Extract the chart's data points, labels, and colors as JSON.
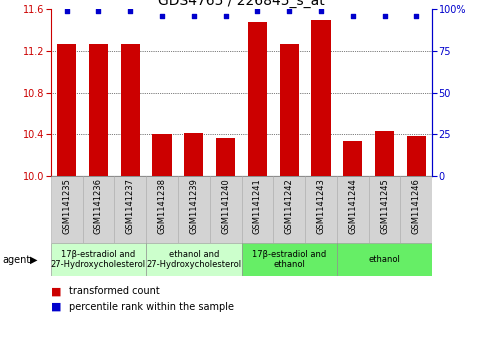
{
  "title": "GDS4765 / 226845_s_at",
  "samples": [
    "GSM1141235",
    "GSM1141236",
    "GSM1141237",
    "GSM1141238",
    "GSM1141239",
    "GSM1141240",
    "GSM1141241",
    "GSM1141242",
    "GSM1141243",
    "GSM1141244",
    "GSM1141245",
    "GSM1141246"
  ],
  "bar_values": [
    11.27,
    11.27,
    11.27,
    10.4,
    10.41,
    10.36,
    11.48,
    11.27,
    11.5,
    10.34,
    10.43,
    10.38
  ],
  "percentile_values": [
    99,
    99,
    99,
    96,
    96,
    96,
    99,
    99,
    99,
    96,
    96,
    96
  ],
  "bar_color": "#cc0000",
  "percentile_color": "#0000cc",
  "y_min": 10.0,
  "y_max": 11.6,
  "y_ticks": [
    10.0,
    10.4,
    10.8,
    11.2,
    11.6
  ],
  "y2_ticks": [
    0,
    25,
    50,
    75,
    100
  ],
  "groups": [
    {
      "label": "17β-estradiol and\n27-Hydroxycholesterol",
      "start": 0,
      "end": 3,
      "color": "#ccffcc"
    },
    {
      "label": "ethanol and\n27-Hydroxycholesterol",
      "start": 3,
      "end": 6,
      "color": "#ccffcc"
    },
    {
      "label": "17β-estradiol and\nethanol",
      "start": 6,
      "end": 9,
      "color": "#66ee66"
    },
    {
      "label": "ethanol",
      "start": 9,
      "end": 12,
      "color": "#66ee66"
    }
  ],
  "legend_items": [
    {
      "label": "transformed count",
      "color": "#cc0000"
    },
    {
      "label": "percentile rank within the sample",
      "color": "#0000cc"
    }
  ],
  "agent_label": "agent",
  "bar_width": 0.6,
  "ylabel_color": "#cc0000",
  "y2label_color": "#0000cc",
  "title_fontsize": 10,
  "tick_fontsize": 7,
  "sample_fontsize": 6,
  "group_fontsize": 6,
  "legend_fontsize": 7
}
